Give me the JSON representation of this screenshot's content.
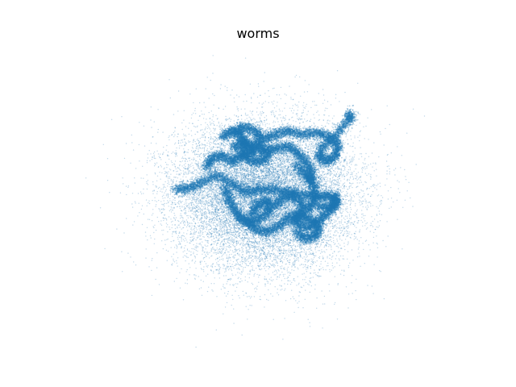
{
  "chart_data": {
    "type": "scatter",
    "title": "worms",
    "axes_visible": false,
    "grid": false,
    "xlim": [
      -1.9,
      1.9
    ],
    "ylim": [
      -1.35,
      1.35
    ],
    "marker_color": "#1f77b4",
    "background_points": 16000,
    "background_spread": [
      0.42,
      0.33
    ],
    "worms": [
      {
        "points": [
          [
            -0.28,
            0.58
          ],
          [
            -0.2,
            0.62
          ],
          [
            -0.08,
            0.58
          ],
          [
            -0.02,
            0.5
          ],
          [
            0.1,
            0.55
          ],
          [
            0.22,
            0.58
          ],
          [
            0.36,
            0.55
          ],
          [
            0.5,
            0.57
          ],
          [
            0.62,
            0.52
          ],
          [
            0.7,
            0.46
          ],
          [
            0.68,
            0.36
          ],
          [
            0.6,
            0.3
          ],
          [
            0.52,
            0.34
          ],
          [
            0.55,
            0.44
          ],
          [
            0.68,
            0.55
          ],
          [
            0.8,
            0.68
          ],
          [
            0.82,
            0.74
          ]
        ]
      },
      {
        "points": [
          [
            -0.55,
            0.25
          ],
          [
            -0.5,
            0.34
          ],
          [
            -0.4,
            0.36
          ],
          [
            -0.3,
            0.3
          ],
          [
            -0.22,
            0.36
          ],
          [
            -0.12,
            0.4
          ],
          [
            -0.06,
            0.48
          ],
          [
            -0.02,
            0.4
          ],
          [
            0.1,
            0.42
          ],
          [
            0.22,
            0.45
          ],
          [
            0.32,
            0.38
          ],
          [
            0.4,
            0.3
          ],
          [
            0.45,
            0.2
          ],
          [
            0.42,
            0.1
          ]
        ]
      },
      {
        "points": [
          [
            -0.4,
            0.52
          ],
          [
            -0.32,
            0.58
          ],
          [
            -0.22,
            0.55
          ],
          [
            -0.18,
            0.46
          ],
          [
            -0.2,
            0.36
          ],
          [
            -0.1,
            0.3
          ],
          [
            0.0,
            0.32
          ],
          [
            0.05,
            0.42
          ]
        ]
      },
      {
        "points": [
          [
            -0.85,
            0.05
          ],
          [
            -0.72,
            0.06
          ],
          [
            -0.6,
            0.12
          ],
          [
            -0.45,
            0.18
          ],
          [
            -0.3,
            0.1
          ],
          [
            -0.18,
            0.02
          ],
          [
            -0.05,
            0.05
          ],
          [
            0.1,
            0.05
          ],
          [
            0.25,
            0.02
          ],
          [
            0.4,
            0.0
          ],
          [
            0.52,
            -0.02
          ],
          [
            0.62,
            0.0
          ],
          [
            0.7,
            -0.06
          ],
          [
            0.62,
            -0.12
          ],
          [
            0.5,
            -0.1
          ]
        ]
      },
      {
        "points": [
          [
            -0.38,
            0.08
          ],
          [
            -0.34,
            -0.04
          ],
          [
            -0.28,
            -0.14
          ],
          [
            -0.22,
            -0.22
          ],
          [
            -0.12,
            -0.25
          ],
          [
            -0.02,
            -0.2
          ],
          [
            0.06,
            -0.12
          ],
          [
            0.02,
            -0.05
          ],
          [
            -0.08,
            -0.1
          ],
          [
            -0.12,
            -0.2
          ]
        ]
      },
      {
        "points": [
          [
            -0.2,
            -0.22
          ],
          [
            -0.1,
            -0.3
          ],
          [
            0.02,
            -0.34
          ],
          [
            0.14,
            -0.28
          ],
          [
            0.24,
            -0.2
          ],
          [
            0.34,
            -0.18
          ],
          [
            0.44,
            -0.22
          ],
          [
            0.52,
            -0.3
          ],
          [
            0.48,
            -0.38
          ],
          [
            0.38,
            -0.4
          ],
          [
            0.3,
            -0.32
          ]
        ]
      },
      {
        "points": [
          [
            0.1,
            -0.1
          ],
          [
            0.18,
            -0.02
          ],
          [
            0.28,
            0.0
          ],
          [
            0.36,
            -0.08
          ],
          [
            0.34,
            -0.18
          ],
          [
            0.28,
            -0.24
          ],
          [
            0.4,
            -0.3
          ],
          [
            0.5,
            -0.25
          ],
          [
            0.58,
            -0.18
          ],
          [
            0.66,
            -0.1
          ],
          [
            0.68,
            0.0
          ]
        ]
      },
      {
        "points": [
          [
            0.3,
            0.28
          ],
          [
            0.38,
            0.2
          ],
          [
            0.46,
            0.12
          ],
          [
            0.48,
            0.02
          ],
          [
            0.46,
            -0.08
          ],
          [
            0.4,
            -0.14
          ]
        ]
      },
      {
        "points": [
          [
            -0.3,
            0.42
          ],
          [
            -0.22,
            0.48
          ],
          [
            -0.14,
            0.46
          ],
          [
            -0.1,
            0.38
          ]
        ]
      }
    ],
    "worm_points_per_segment": 360,
    "worm_thickness": 0.045
  }
}
